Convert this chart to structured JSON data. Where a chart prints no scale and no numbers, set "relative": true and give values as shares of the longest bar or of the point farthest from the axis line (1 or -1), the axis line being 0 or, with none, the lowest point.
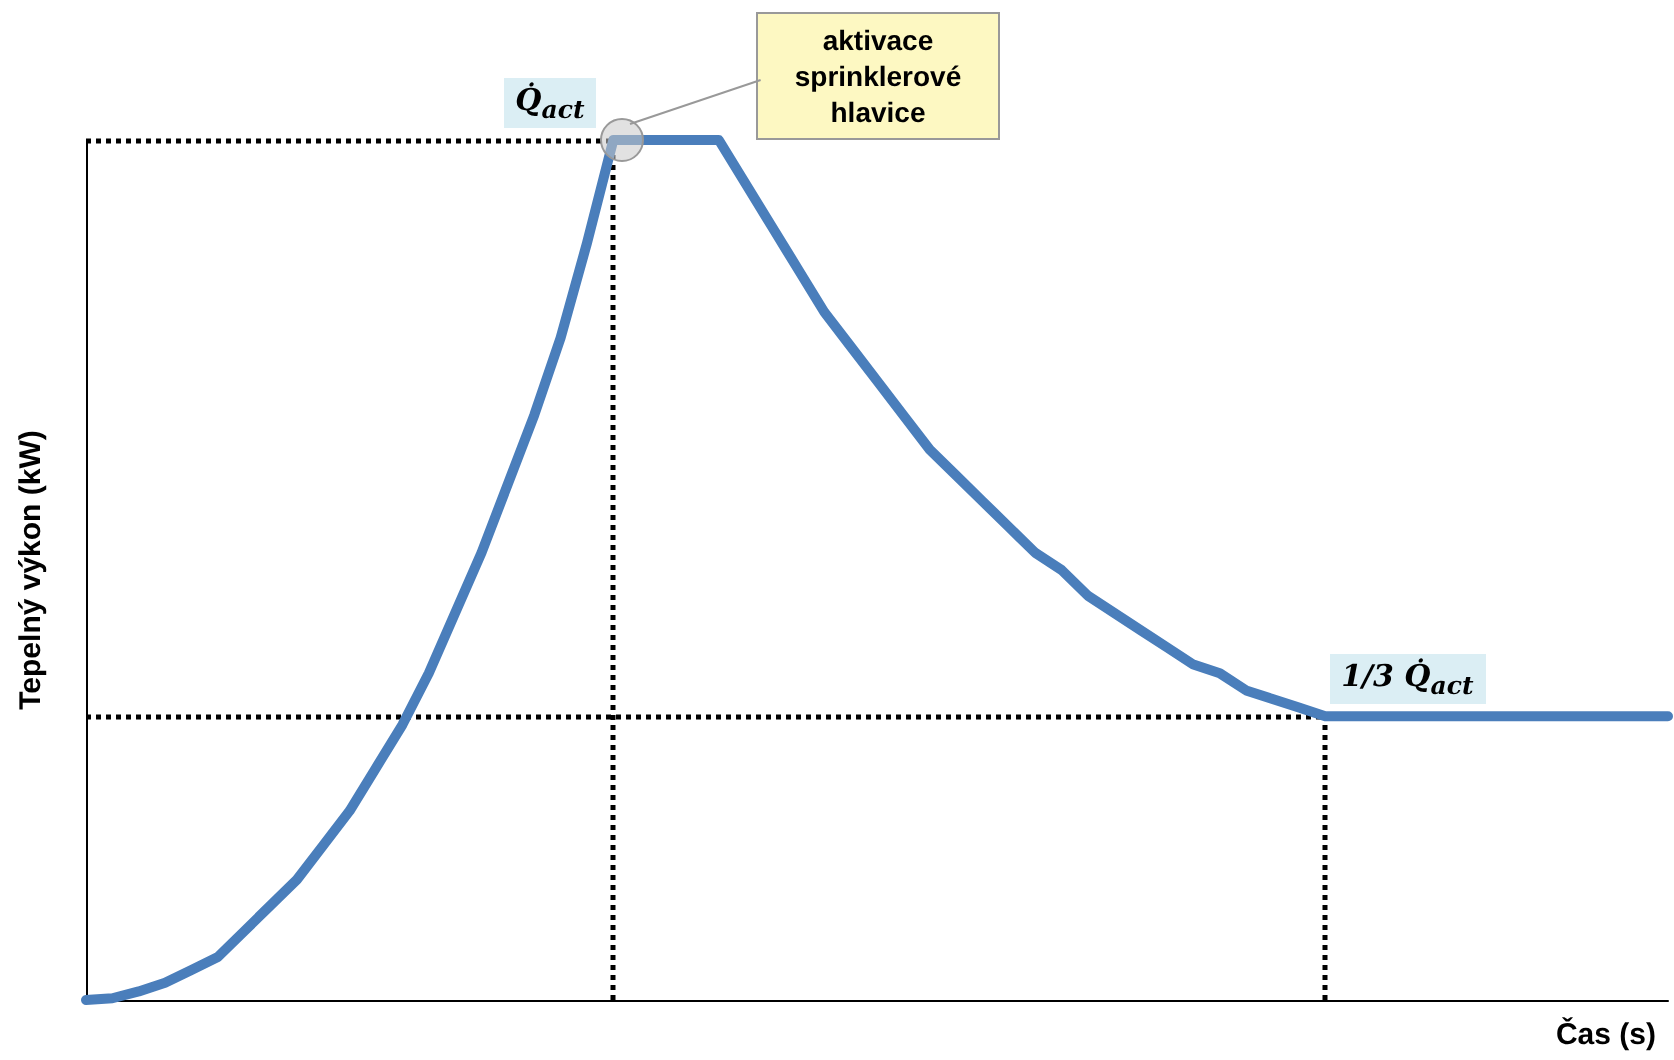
{
  "chart_data": {
    "type": "line",
    "relative": true,
    "xlabel": "Čas (s)",
    "ylabel": "Tepelný výkon (kW)",
    "categories": [
      null,
      null,
      null,
      null,
      null,
      null,
      null,
      null,
      null,
      null,
      null,
      null,
      null,
      null,
      null,
      null,
      null,
      null,
      null,
      null,
      null,
      null,
      null,
      null,
      null,
      null,
      null,
      null,
      null,
      null,
      null,
      null,
      null,
      null,
      null,
      null,
      null,
      null,
      null,
      null,
      null,
      null,
      null,
      null,
      null,
      null,
      null,
      null,
      null,
      null,
      null,
      null,
      null,
      null,
      null,
      null,
      null,
      null,
      null,
      null,
      null
    ],
    "series": [
      {
        "color": "#4a7ebb",
        "values": [
          0,
          0.002,
          0.01,
          0.02,
          0.035,
          0.05,
          0.08,
          0.11,
          0.14,
          0.18,
          0.22,
          0.27,
          0.32,
          0.38,
          0.45,
          0.52,
          0.6,
          0.68,
          0.77,
          0.88,
          1,
          1,
          1,
          1,
          1,
          0.95,
          0.9,
          0.85,
          0.8,
          0.76,
          0.72,
          0.68,
          0.64,
          0.61,
          0.58,
          0.55,
          0.52,
          0.5,
          0.47,
          0.45,
          0.43,
          0.41,
          0.39,
          0.38,
          0.36,
          0.35,
          0.34,
          0.33,
          0.33,
          0.33,
          0.33,
          0.33,
          0.33,
          0.33,
          0.33,
          0.33,
          0.33,
          0.33,
          0.33,
          0.33,
          0.33
        ]
      }
    ],
    "ref_lines": [
      {
        "axis": "y",
        "value": 1,
        "label": "Q̇$_{act}$",
        "color": "#000000",
        "line_style": "dotted"
      },
      {
        "axis": "y",
        "value": 0.33,
        "label": "1/3 Q̇$_{act}$",
        "color": "#000000",
        "line_style": "dotted"
      }
    ],
    "annotations": [
      "aktivace sprinklerové hlavice"
    ],
    "grid": false,
    "marker": "none",
    "line_style": "solid"
  }
}
